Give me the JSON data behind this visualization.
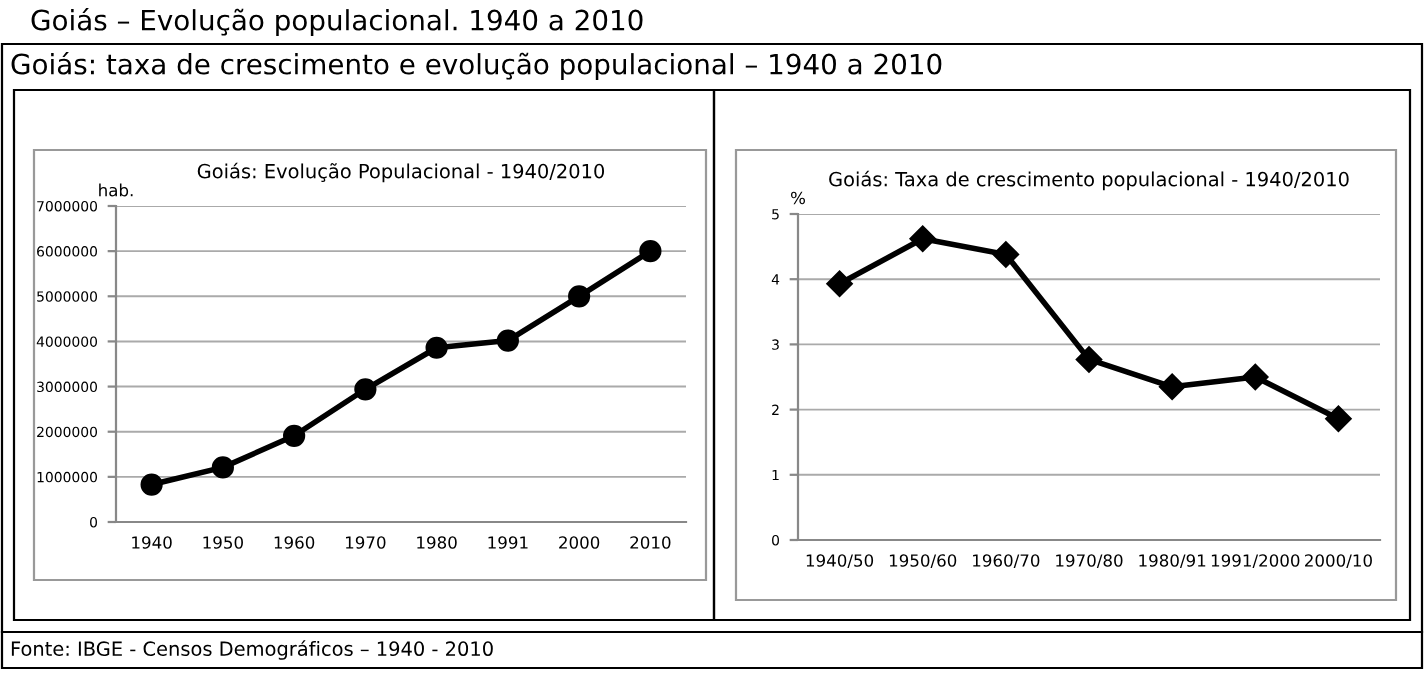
{
  "chart_data": [
    {
      "type": "line",
      "title": "Goiás: Evolução Populacional - 1940/2010",
      "ylabel": "hab.",
      "categories": [
        "1940",
        "1950",
        "1960",
        "1970",
        "1980",
        "1991",
        "2000",
        "2010"
      ],
      "series": [
        {
          "color": "#000000",
          "values": [
            830000,
            1210000,
            1910000,
            2940000,
            3860000,
            4020000,
            5000000,
            6000000
          ]
        }
      ],
      "ylim": [
        0,
        7000000
      ],
      "yticks": [
        0,
        1000000,
        2000000,
        3000000,
        4000000,
        5000000,
        6000000,
        7000000
      ],
      "grid": "y",
      "marker": "circle",
      "line_style": "solid",
      "annotations": [
        "Goiás – Evolução populacional. 1940 a 2010",
        "Goiás: taxa de crescimento e evolução populacional – 1940 a 2010",
        "Fonte: IBGE - Censos Demográficos – 1940 - 2010"
      ]
    },
    {
      "type": "line",
      "title": "Goiás: Taxa de crescimento populacional - 1940/2010",
      "ylabel": "%",
      "categories": [
        "1940/50",
        "1950/60",
        "1960/70",
        "1970/80",
        "1980/91",
        "1991/2000",
        "2000/10"
      ],
      "series": [
        {
          "color": "#000000",
          "values": [
            3.93,
            4.62,
            4.38,
            2.77,
            2.35,
            2.5,
            1.86
          ]
        }
      ],
      "ylim": [
        0,
        5
      ],
      "yticks": [
        0,
        1,
        2,
        3,
        4,
        5
      ],
      "grid": "y",
      "marker": "diamond",
      "line_style": "solid"
    }
  ]
}
